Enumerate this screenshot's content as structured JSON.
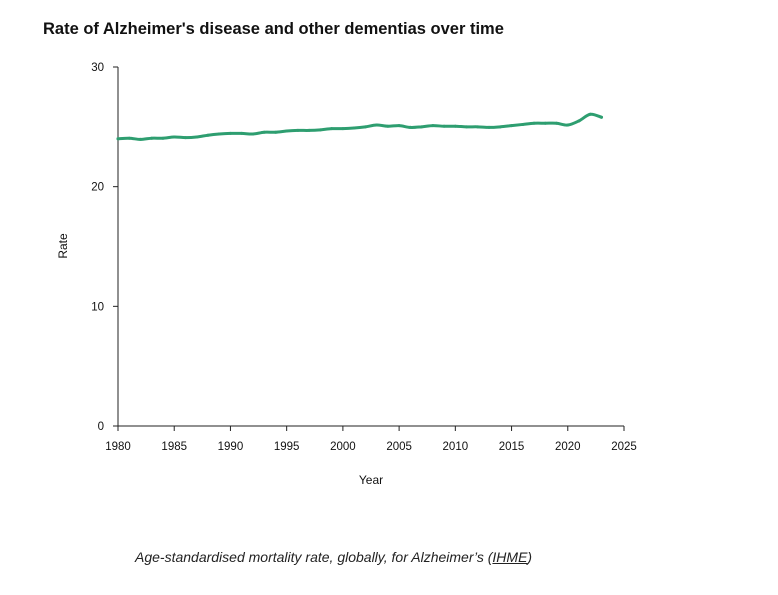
{
  "chart_data": {
    "type": "line",
    "title": "Rate of Alzheimer's disease and other dementias over time",
    "xlabel": "Year",
    "ylabel": "Rate",
    "xlim": [
      1980,
      2025
    ],
    "ylim": [
      0,
      30
    ],
    "x_ticks": [
      "1980",
      "1985",
      "1990",
      "1995",
      "2000",
      "2005",
      "2010",
      "2015",
      "2020",
      "2025"
    ],
    "y_ticks": [
      "0",
      "10",
      "20",
      "30"
    ],
    "grid": false,
    "legend": "none",
    "series": [
      {
        "name": "Rate",
        "color": "#2e9e70",
        "x": [
          1980,
          1981,
          1982,
          1983,
          1984,
          1985,
          1986,
          1987,
          1988,
          1989,
          1990,
          1991,
          1992,
          1993,
          1994,
          1995,
          1996,
          1997,
          1998,
          1999,
          2000,
          2001,
          2002,
          2003,
          2004,
          2005,
          2006,
          2007,
          2008,
          2009,
          2010,
          2011,
          2012,
          2013,
          2014,
          2015,
          2016,
          2017,
          2018,
          2019,
          2020,
          2021,
          2022,
          2023
        ],
        "values": [
          24.0,
          24.05,
          23.95,
          24.05,
          24.05,
          24.15,
          24.1,
          24.15,
          24.3,
          24.4,
          24.45,
          24.45,
          24.4,
          24.55,
          24.55,
          24.65,
          24.7,
          24.7,
          24.75,
          24.85,
          24.85,
          24.9,
          25.0,
          25.15,
          25.05,
          25.1,
          24.95,
          25.0,
          25.1,
          25.05,
          25.05,
          25.0,
          25.0,
          24.95,
          25.0,
          25.1,
          25.2,
          25.3,
          25.3,
          25.3,
          25.15,
          25.5,
          26.05,
          25.8
        ]
      }
    ]
  },
  "caption": {
    "text": "Age-standardised mortality rate, globally, for Alzheimer’s (",
    "link": "IHME",
    "close": ")"
  }
}
